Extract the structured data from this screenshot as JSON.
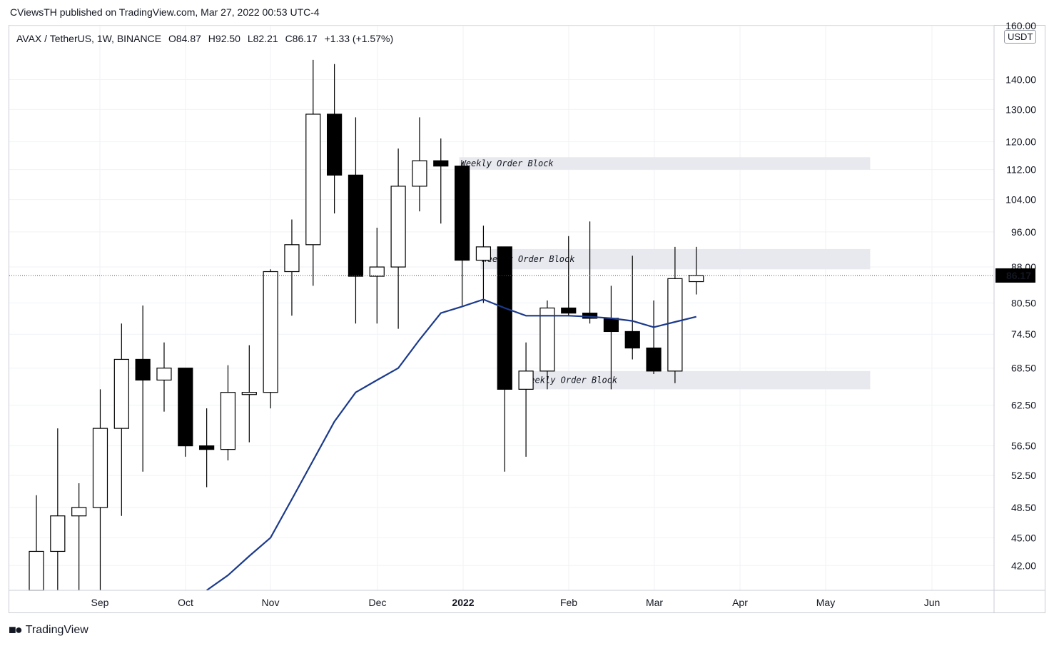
{
  "header": {
    "published": "CViewsTH published on TradingView.com, Mar 27, 2022 00:53 UTC-4"
  },
  "symbol_line": {
    "pair": "AVAX / TetherUS, 1W, BINANCE",
    "open": "O84.87",
    "high": "H92.50",
    "low": "L82.21",
    "close": "C86.17",
    "change": "+1.33 (+1.57%)"
  },
  "price_unit": "USDT",
  "footer": {
    "brand": "TradingView",
    "logo": "tradingview-logo-icon"
  },
  "colors": {
    "up_fill": "#ffffff",
    "down_fill": "#000000",
    "ma_line": "#1b3a8c",
    "zone": "#e8e9ee",
    "price_tag": "#000000"
  },
  "chart_data": {
    "type": "candlestick",
    "timeframe": "1W",
    "log_scale": true,
    "ylim": [
      39.5,
      160
    ],
    "y_ticks": [
      "160.00",
      "140.00",
      "130.00",
      "120.00",
      "112.00",
      "104.00",
      "96.00",
      "88.00",
      "80.50",
      "74.50",
      "68.50",
      "62.50",
      "56.50",
      "52.50",
      "48.50",
      "45.00",
      "42.00"
    ],
    "x_labels": [
      "Sep",
      "Oct",
      "Nov",
      "Dec",
      "2022",
      "Feb",
      "Mar",
      "Apr",
      "May",
      "Jun"
    ],
    "last_price": "86.17",
    "candles": [
      {
        "o": 39.5,
        "h": 50.0,
        "l": 39.5,
        "c": 43.5
      },
      {
        "o": 43.5,
        "h": 59.0,
        "l": 39.5,
        "c": 47.5
      },
      {
        "o": 47.5,
        "h": 51.5,
        "l": 39.5,
        "c": 48.5
      },
      {
        "o": 48.5,
        "h": 65.0,
        "l": 39.5,
        "c": 59.0
      },
      {
        "o": 59.0,
        "h": 76.5,
        "l": 47.5,
        "c": 70.0
      },
      {
        "o": 70.0,
        "h": 80.0,
        "l": 53.0,
        "c": 66.5
      },
      {
        "o": 66.5,
        "h": 73.0,
        "l": 61.5,
        "c": 68.5
      },
      {
        "o": 68.5,
        "h": 68.5,
        "l": 55.0,
        "c": 56.5
      },
      {
        "o": 56.5,
        "h": 62.0,
        "l": 51.0,
        "c": 56.0
      },
      {
        "o": 56.0,
        "h": 69.0,
        "l": 54.5,
        "c": 64.5
      },
      {
        "o": 64.5,
        "h": 72.5,
        "l": 57.0,
        "c": 64.5
      },
      {
        "o": 64.5,
        "h": 87.5,
        "l": 62.0,
        "c": 87.0
      },
      {
        "o": 87.0,
        "h": 99.0,
        "l": 78.0,
        "c": 93.0
      },
      {
        "o": 93.0,
        "h": 147.0,
        "l": 84.0,
        "c": 128.5
      },
      {
        "o": 128.5,
        "h": 145.5,
        "l": 100.5,
        "c": 110.5
      },
      {
        "o": 110.5,
        "h": 127.5,
        "l": 76.5,
        "c": 86.0
      },
      {
        "o": 86.0,
        "h": 97.0,
        "l": 76.5,
        "c": 88.0
      },
      {
        "o": 88.0,
        "h": 118.0,
        "l": 75.5,
        "c": 107.5
      },
      {
        "o": 107.5,
        "h": 127.5,
        "l": 101.0,
        "c": 114.5
      },
      {
        "o": 114.5,
        "h": 121.0,
        "l": 98.0,
        "c": 113.0
      },
      {
        "o": 113.0,
        "h": 114.0,
        "l": 80.0,
        "c": 89.5
      },
      {
        "o": 89.5,
        "h": 97.5,
        "l": 80.5,
        "c": 92.5
      },
      {
        "o": 92.5,
        "h": 92.5,
        "l": 53.0,
        "c": 65.0
      },
      {
        "o": 65.0,
        "h": 73.0,
        "l": 55.0,
        "c": 68.0
      },
      {
        "o": 68.0,
        "h": 81.0,
        "l": 65.0,
        "c": 79.5
      },
      {
        "o": 79.5,
        "h": 95.0,
        "l": 78.0,
        "c": 78.5
      },
      {
        "o": 78.5,
        "h": 98.5,
        "l": 76.5,
        "c": 77.5
      },
      {
        "o": 77.5,
        "h": 84.0,
        "l": 65.0,
        "c": 75.0
      },
      {
        "o": 75.0,
        "h": 90.5,
        "l": 70.0,
        "c": 72.0
      },
      {
        "o": 72.0,
        "h": 81.0,
        "l": 67.5,
        "c": 68.0
      },
      {
        "o": 68.0,
        "h": 92.5,
        "l": 66.0,
        "c": 85.5
      },
      {
        "o": 84.87,
        "h": 92.5,
        "l": 82.21,
        "c": 86.17
      }
    ],
    "ma_series": [
      {
        "bar": 8,
        "value": 39.5
      },
      {
        "bar": 9,
        "value": 41.0
      },
      {
        "bar": 10,
        "value": 43.0
      },
      {
        "bar": 11,
        "value": 45.0
      },
      {
        "bar": 12,
        "value": 49.5
      },
      {
        "bar": 13,
        "value": 54.5
      },
      {
        "bar": 14,
        "value": 60.0
      },
      {
        "bar": 15,
        "value": 64.5
      },
      {
        "bar": 16,
        "value": 66.5
      },
      {
        "bar": 17,
        "value": 68.5
      },
      {
        "bar": 18,
        "value": 73.5
      },
      {
        "bar": 19,
        "value": 78.5
      },
      {
        "bar": 20,
        "value": 79.8
      },
      {
        "bar": 21,
        "value": 81.2
      },
      {
        "bar": 22,
        "value": 79.5
      },
      {
        "bar": 23,
        "value": 78.0
      },
      {
        "bar": 24,
        "value": 78.0
      },
      {
        "bar": 25,
        "value": 78.0
      },
      {
        "bar": 26,
        "value": 77.8
      },
      {
        "bar": 27,
        "value": 77.5
      },
      {
        "bar": 28,
        "value": 77.0
      },
      {
        "bar": 29,
        "value": 75.8
      },
      {
        "bar": 30,
        "value": 76.8
      },
      {
        "bar": 31,
        "value": 77.8
      }
    ],
    "zones": [
      {
        "label": "Weekly Order Block",
        "from_bar": 20,
        "to_bar": 39,
        "low": 112.0,
        "high": 115.5
      },
      {
        "label": "Weekly Order Block",
        "from_bar": 21,
        "to_bar": 39,
        "low": 87.5,
        "high": 92.0
      },
      {
        "label": "Weekly Order Block",
        "from_bar": 23,
        "to_bar": 39,
        "low": 65.0,
        "high": 68.0
      }
    ]
  }
}
